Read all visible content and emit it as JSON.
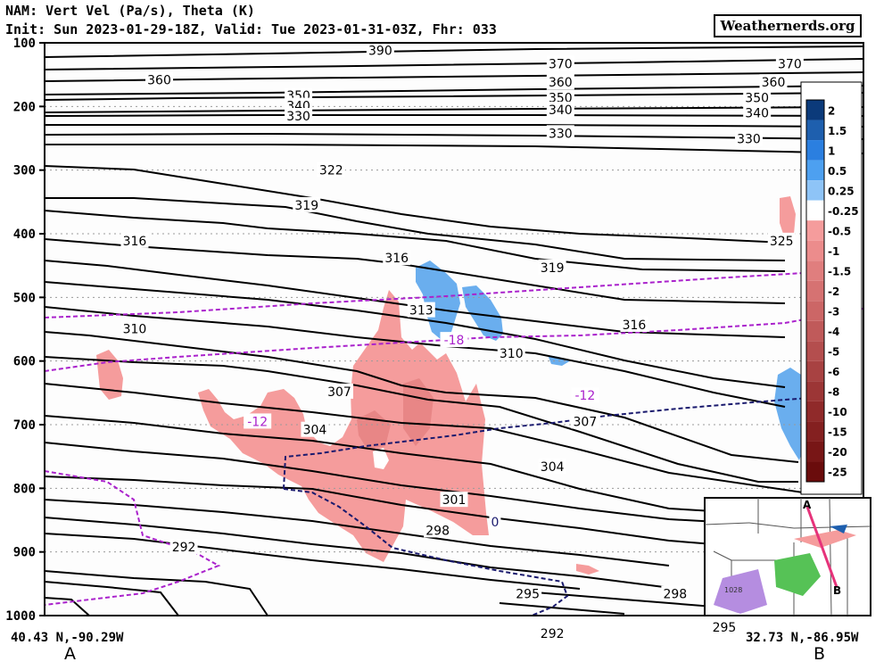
{
  "header": {
    "title": "NAM: Vert Vel (Pa/s), Theta (K)",
    "subtitle": "Init: Sun 2023-01-29-18Z, Valid: Tue 2023-01-31-03Z, Fhr: 033",
    "brand": "Weathernerds.org"
  },
  "footer": {
    "left_coord": "40.43 N,-90.29W",
    "right_coord": "32.73 N,-86.95W",
    "left_point": "A",
    "right_point": "B"
  },
  "colors": {
    "theta": "#000000",
    "temp_contour": "#aa22cc",
    "zero_contour": "#1a1a6e",
    "background": "#fdfdfd",
    "grid": "#9a9a9a"
  },
  "chart_data": {
    "type": "cross-section",
    "y_axis": {
      "label": "",
      "ticks": [
        100,
        200,
        300,
        400,
        500,
        600,
        700,
        800,
        900,
        1000
      ],
      "range": [
        100,
        1000
      ]
    },
    "grid": true,
    "theta_labels": [
      {
        "value": "390",
        "x": 0.41,
        "p": 112
      },
      {
        "value": "370",
        "x": 0.63,
        "p": 133
      },
      {
        "value": "370",
        "x": 0.91,
        "p": 133
      },
      {
        "value": "360",
        "x": 0.14,
        "p": 158
      },
      {
        "value": "360",
        "x": 0.63,
        "p": 162
      },
      {
        "value": "360",
        "x": 0.89,
        "p": 162
      },
      {
        "value": "350",
        "x": 0.31,
        "p": 183
      },
      {
        "value": "350",
        "x": 0.63,
        "p": 186
      },
      {
        "value": "350",
        "x": 0.87,
        "p": 186
      },
      {
        "value": "340",
        "x": 0.31,
        "p": 199
      },
      {
        "value": "340",
        "x": 0.63,
        "p": 205
      },
      {
        "value": "340",
        "x": 0.87,
        "p": 210
      },
      {
        "value": "330",
        "x": 0.31,
        "p": 215
      },
      {
        "value": "330",
        "x": 0.63,
        "p": 242
      },
      {
        "value": "330",
        "x": 0.86,
        "p": 251
      },
      {
        "value": "322",
        "x": 0.35,
        "p": 300
      },
      {
        "value": "319",
        "x": 0.32,
        "p": 355
      },
      {
        "value": "316",
        "x": 0.11,
        "p": 411
      },
      {
        "value": "316",
        "x": 0.43,
        "p": 438
      },
      {
        "value": "319",
        "x": 0.62,
        "p": 453
      },
      {
        "value": "325",
        "x": 0.9,
        "p": 411
      },
      {
        "value": "313",
        "x": 0.46,
        "p": 520
      },
      {
        "value": "316",
        "x": 0.72,
        "p": 543
      },
      {
        "value": "310",
        "x": 0.11,
        "p": 549
      },
      {
        "value": "310",
        "x": 0.57,
        "p": 588
      },
      {
        "value": "307",
        "x": 0.36,
        "p": 648
      },
      {
        "value": "307",
        "x": 0.66,
        "p": 695
      },
      {
        "value": "304",
        "x": 0.33,
        "p": 708
      },
      {
        "value": "304",
        "x": 0.62,
        "p": 766
      },
      {
        "value": "301",
        "x": 0.5,
        "p": 818
      },
      {
        "value": "301",
        "x": 0.89,
        "p": 947
      },
      {
        "value": "298",
        "x": 0.48,
        "p": 866
      },
      {
        "value": "298",
        "x": 0.77,
        "p": 966
      },
      {
        "value": "292",
        "x": 0.17,
        "p": 892
      },
      {
        "value": "295",
        "x": 0.59,
        "p": 966
      },
      {
        "value": "295",
        "x": 0.83,
        "p": 1018
      },
      {
        "value": "292",
        "x": 0.62,
        "p": 1028
      }
    ],
    "temp_labels": [
      {
        "value": "-18",
        "x": 0.5,
        "p": 567
      },
      {
        "value": "-12",
        "x": 0.26,
        "p": 695
      },
      {
        "value": "-12",
        "x": 0.66,
        "p": 654
      },
      {
        "value": "0",
        "x": 0.55,
        "p": 853
      }
    ],
    "legend": {
      "position": "right",
      "entries": [
        {
          "label": "2",
          "color": "#0b3a7a"
        },
        {
          "label": "1.5",
          "color": "#1e5fae"
        },
        {
          "label": "1",
          "color": "#2b7fe0"
        },
        {
          "label": "0.5",
          "color": "#4da0f0"
        },
        {
          "label": "0.25",
          "color": "#8ec4f7"
        },
        {
          "label": "-0.25",
          "color": "#ffffff"
        },
        {
          "label": "-0.5",
          "color": "#f59c9c"
        },
        {
          "label": "-1",
          "color": "#ec8c8c"
        },
        {
          "label": "-1.5",
          "color": "#e07e7e"
        },
        {
          "label": "-2",
          "color": "#d67272"
        },
        {
          "label": "-3",
          "color": "#cc6666"
        },
        {
          "label": "-4",
          "color": "#c05a5a"
        },
        {
          "label": "-5",
          "color": "#b44e4e"
        },
        {
          "label": "-6",
          "color": "#a84242"
        },
        {
          "label": "-8",
          "color": "#9c3636"
        },
        {
          "label": "-10",
          "color": "#902a2a"
        },
        {
          "label": "-15",
          "color": "#842020"
        },
        {
          "label": "-20",
          "color": "#781616"
        },
        {
          "label": "-25",
          "color": "#6a0c0c"
        }
      ]
    },
    "inset_map": {
      "labels": [
        "A",
        "B",
        "1028"
      ]
    }
  }
}
